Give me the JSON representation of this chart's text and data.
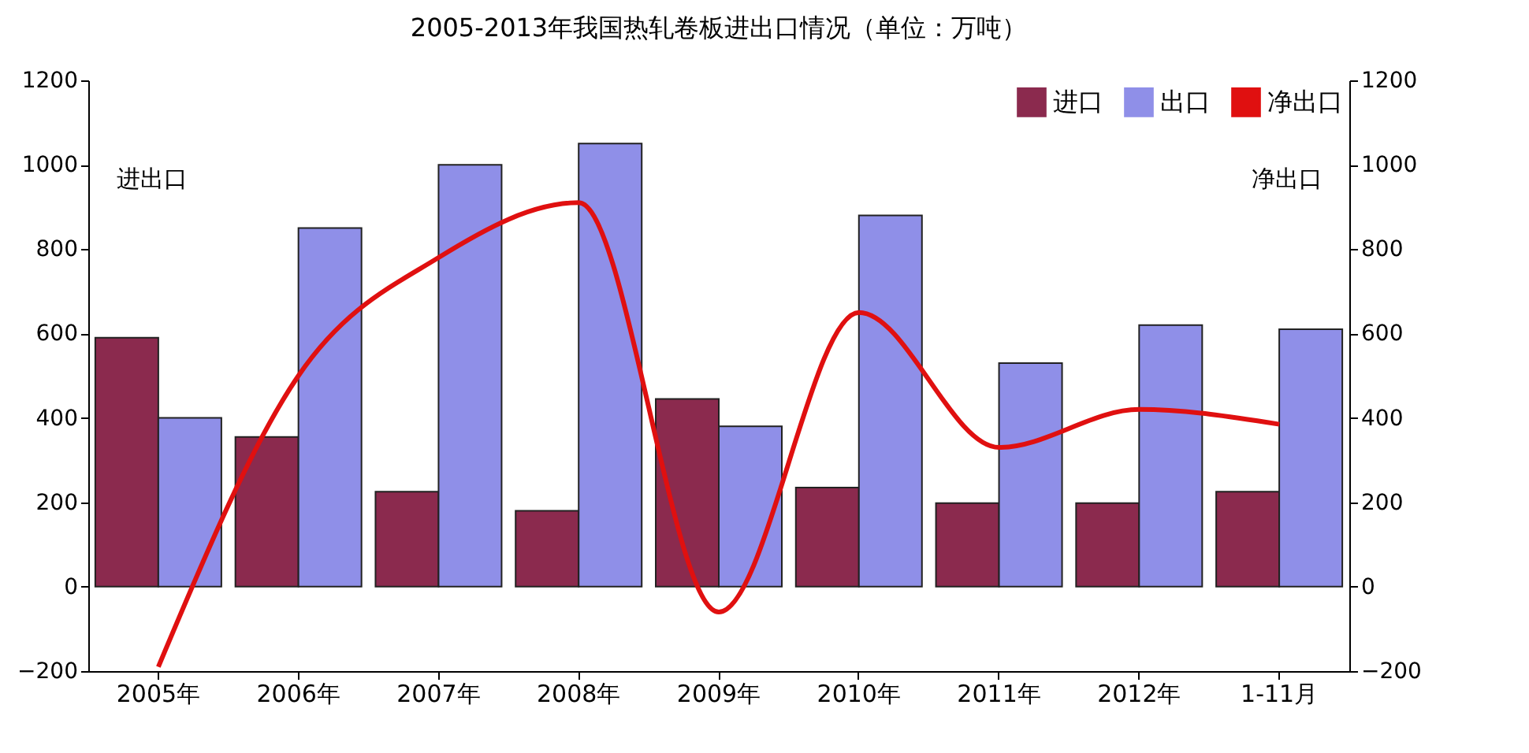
{
  "chart_data": {
    "type": "bar",
    "title": "2005-2013年我国热轧卷板进出口情况（单位：万吨）",
    "ylabel": "进出口",
    "y2label": "净出口",
    "categories": [
      "2005年",
      "2006年",
      "2007年",
      "2008年",
      "2009年",
      "2010年",
      "2011年",
      "2012年",
      "1-11月"
    ],
    "series": [
      {
        "name": "进口",
        "color": "#8b2a4e",
        "values": [
          590,
          355,
          225,
          180,
          445,
          235,
          198,
          198,
          225
        ]
      },
      {
        "name": "出口",
        "color": "#8f8fe8",
        "values": [
          400,
          850,
          1000,
          1050,
          380,
          880,
          530,
          620,
          610
        ]
      },
      {
        "name": "净出口",
        "type": "line",
        "axis": "y2",
        "color": "#e01010",
        "values": [
          -190,
          500,
          780,
          910,
          -60,
          650,
          330,
          420,
          385
        ]
      }
    ],
    "ylim": [
      -200,
      1200
    ],
    "yticks": [
      -200,
      0,
      200,
      400,
      600,
      800,
      1000,
      1200
    ],
    "y2lim": [
      -200,
      1200
    ],
    "y2ticks": [
      -200,
      0,
      200,
      400,
      600,
      800,
      1000,
      1200
    ],
    "grid": false,
    "legend": "top right"
  }
}
